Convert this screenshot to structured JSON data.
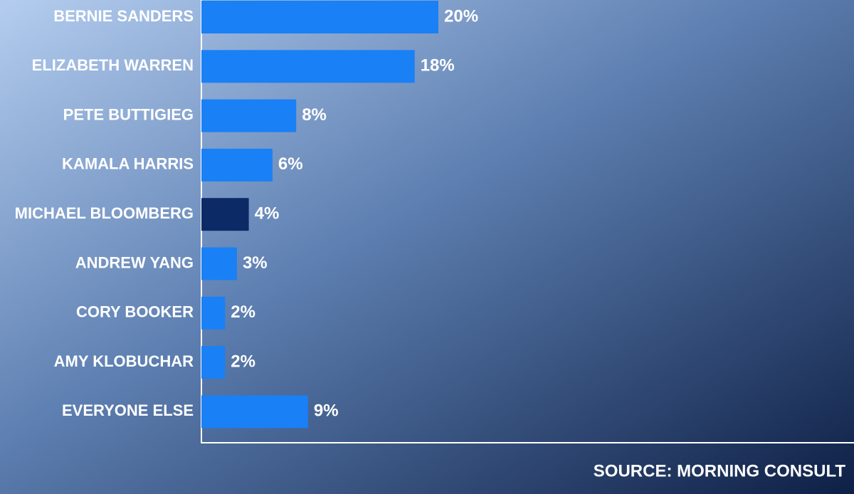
{
  "chart_data": {
    "type": "hbar",
    "categories": [
      "BERNIE SANDERS",
      "ELIZABETH WARREN",
      "PETE BUTTIGIEG",
      "KAMALA HARRIS",
      "MICHAEL BLOOMBERG",
      "ANDREW YANG",
      "CORY BOOKER",
      "AMY KLOBUCHAR",
      "EVERYONE ELSE"
    ],
    "values": [
      20,
      18,
      8,
      6,
      4,
      3,
      2,
      2,
      9
    ],
    "value_labels": [
      "20%",
      "18%",
      "8%",
      "6%",
      "4%",
      "3%",
      "2%",
      "2%",
      "9%"
    ],
    "colors": [
      "#1a80f5",
      "#1a80f5",
      "#1a80f5",
      "#1a80f5",
      "#0b2a66",
      "#1a80f5",
      "#1a80f5",
      "#1a80f5",
      "#1a80f5"
    ],
    "source": "SOURCE: MORNING CONSULT"
  }
}
